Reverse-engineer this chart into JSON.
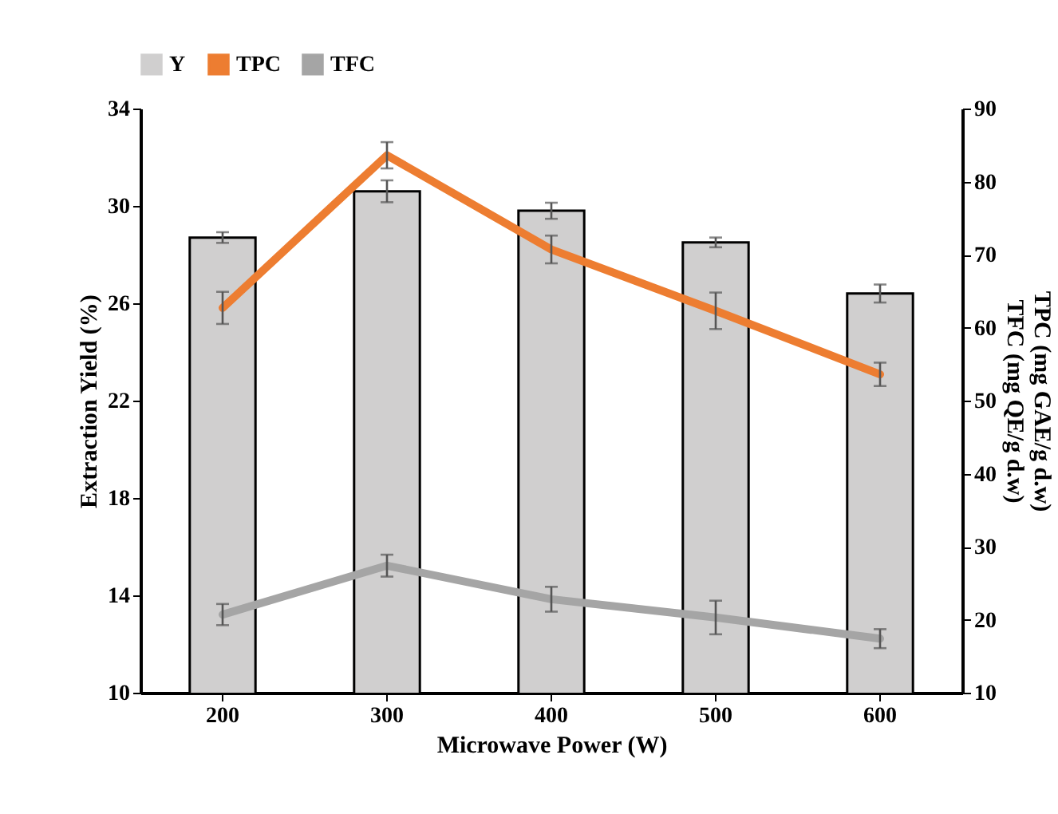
{
  "chart_data": {
    "type": "bar",
    "xlabel": "Microwave Power (W)",
    "ylabel": "Extraction Yield (%)",
    "y2label": "TPC (mg GAE/g d.w)\nTFC (mg QE/g d.w)",
    "categories": [
      "200",
      "300",
      "400",
      "500",
      "600"
    ],
    "series": [
      {
        "name": "Y",
        "type": "bar",
        "color": "#d0cfcf",
        "values": [
          28.7,
          30.6,
          29.8,
          28.5,
          26.4
        ],
        "errors": [
          0.22,
          0.45,
          0.33,
          0.2,
          0.37
        ]
      },
      {
        "name": "TPC",
        "type": "line",
        "axis": "y2",
        "color": "#ed7d31",
        "values": [
          62.7,
          83.6,
          70.7,
          62.3,
          53.6
        ],
        "errors": [
          2.2,
          1.8,
          1.9,
          2.5,
          1.6
        ]
      },
      {
        "name": "TFC",
        "type": "line",
        "axis": "y2",
        "color": "#a5a5a5",
        "values": [
          20.7,
          27.4,
          22.8,
          20.3,
          17.4
        ],
        "errors": [
          1.45,
          1.5,
          1.7,
          2.3,
          1.3
        ]
      }
    ],
    "ylim": [
      10,
      34
    ],
    "yticks": [
      10,
      14,
      18,
      22,
      26,
      30,
      34
    ],
    "y2lim": [
      10,
      90
    ],
    "y2ticks": [
      10,
      20,
      30,
      40,
      50,
      60,
      70,
      80,
      90
    ],
    "legend": "top"
  }
}
